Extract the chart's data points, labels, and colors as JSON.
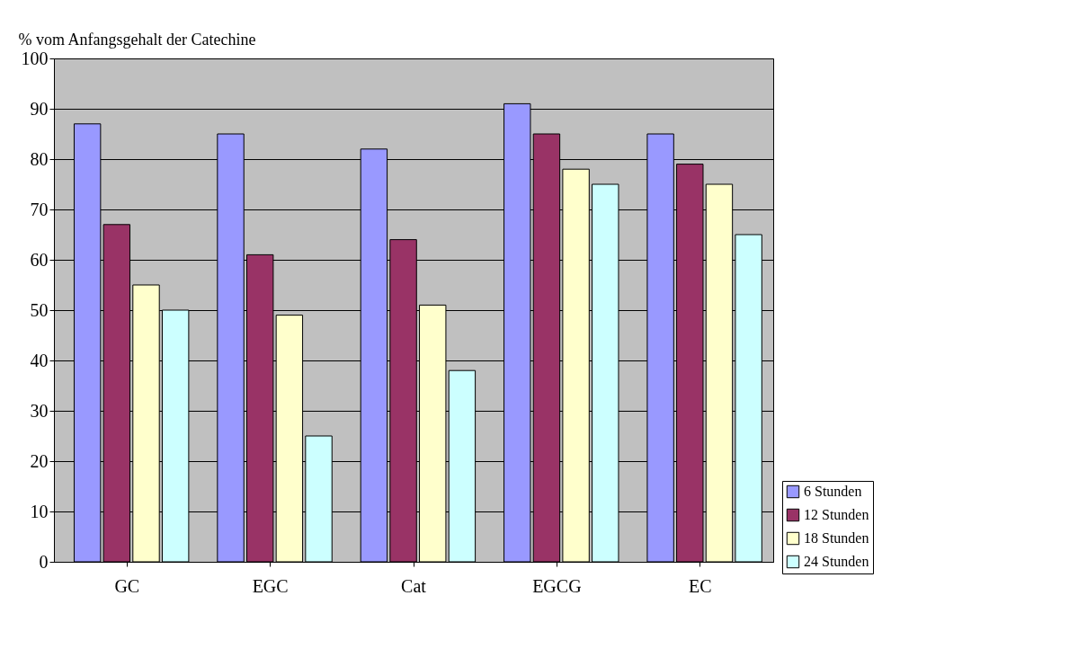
{
  "chart_data": {
    "type": "bar",
    "ylabel": "% vom Anfangsgehalt der Catechine",
    "categories": [
      "GC",
      "EGC",
      "Cat",
      "EGCG",
      "EC"
    ],
    "series": [
      {
        "name": "6 Stunden",
        "color": "#9999ff",
        "values": [
          87,
          85,
          82,
          91,
          85
        ]
      },
      {
        "name": "12 Stunden",
        "color": "#993366",
        "values": [
          67,
          61,
          64,
          85,
          79
        ]
      },
      {
        "name": "18 Stunden",
        "color": "#ffffcc",
        "values": [
          55,
          49,
          51,
          78,
          75
        ]
      },
      {
        "name": "24 Stunden",
        "color": "#ccffff",
        "values": [
          50,
          25,
          38,
          75,
          65
        ]
      }
    ],
    "ylim": [
      0,
      100
    ],
    "yticks": [
      0,
      10,
      20,
      30,
      40,
      50,
      60,
      70,
      80,
      90,
      100
    ],
    "grid": "y",
    "legend": "bottom right"
  }
}
